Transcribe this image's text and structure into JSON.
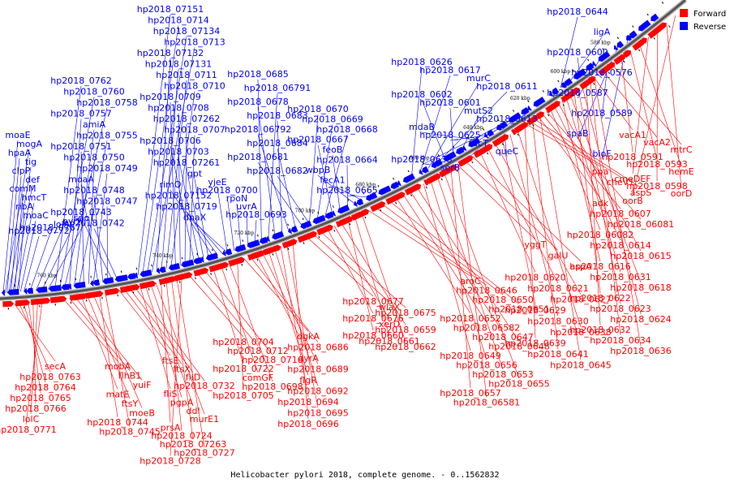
{
  "caption": "Helicobacter pylori 2018, complete genome. - 0..1562832",
  "colors": {
    "forward": "#ff0000",
    "reverse": "#0000ff",
    "backbone": "#555555"
  },
  "legend": [
    {
      "label": "Forward",
      "strand": "forward"
    },
    {
      "label": "Reverse",
      "strand": "reverse"
    }
  ],
  "ticks": [
    "760 kbp",
    "740 kbp",
    "720 kbp",
    "700 kbp",
    "680 kbp",
    "660 kbp",
    "640 kbp",
    "620 kbp",
    "600 kbp",
    "580 kbp"
  ],
  "reverse_labels": [
    "moaE",
    "mogA",
    "hpaA",
    "tig",
    "clpP",
    "def",
    "comM",
    "hmcT",
    "ribA",
    "moaC",
    "hp2018_0772",
    "hp2018_0767",
    "lolA",
    "pyrH",
    "spoT",
    "hp2018_0762",
    "hp2018_0760",
    "hp2018_0758",
    "hp2018_0757",
    "amiA",
    "hp2018_0755",
    "hp2018_0751",
    "hp2018_0750",
    "hp2018_0749",
    "moaA",
    "hp2018_0748",
    "hp2018_0747",
    "hp2018_0743",
    "hp2018_0742",
    "hp2018_07151",
    "hp2018_0714",
    "hp2018_07134",
    "hp2018_0713",
    "hp2018_07132",
    "hp2018_07131",
    "hp2018_0711",
    "hp2018_0710",
    "hp2018_0709",
    "hp2018_0708",
    "hp2018_07262",
    "hp2018_0707",
    "hp2018_0706",
    "hp2018_0703",
    "hp2018_07261",
    "gpt",
    "rimO",
    "hp2018_07152",
    "hp2018_0719",
    "dnaX",
    "yjeE",
    "hp2018_0700",
    "rpoN",
    "uvrA",
    "hp2018_0693",
    "hp2018_0685",
    "hp2018_06791",
    "hp2018_0678",
    "hp2018_0683",
    "hp2018_06792",
    "hp2018_0684",
    "hp2018_0681",
    "hp2018_0682",
    "hp2018_0670",
    "hp2018_0669",
    "hp2018_0668",
    "hp2018_0667",
    "feoB",
    "hp2018_0664",
    "wbpB",
    "fecA1",
    "hp2018_0665",
    "hp2018_0626",
    "hp2018_0617",
    "murC",
    "hp2018_0611",
    "hp2018_0602",
    "hp2018_0601",
    "mutS2",
    "hp2018_0613",
    "mdaB",
    "hp2018_0625",
    "fucT",
    "queC",
    "hp2018_0633",
    "serB",
    "hp2018_0644",
    "ligA",
    "hp2018_0600",
    "hp2018_0576",
    "hp2018_0587",
    "hp2018_0589",
    "spaB",
    "bioF"
  ],
  "forward_labels": [
    "secA",
    "hp2018_0763",
    "hp2018_0764",
    "hp2018_0765",
    "hp2018_0766",
    "lolC",
    "hp2018_0771",
    "mobA",
    "flhB1",
    "yuiF",
    "matE",
    "ftsY",
    "moeB",
    "hp2018_0744",
    "hp2018_0745",
    "ftsE",
    "ftsX",
    "fliD",
    "hp2018_0732",
    "fliS",
    "pgpA",
    "ddl",
    "murE1",
    "prsA",
    "hp2018_0724",
    "hp2018_07263",
    "hp2018_0727",
    "hp2018_0728",
    "hp2018_0704",
    "hp2018_0712",
    "hp2018_0716",
    "hp2018_0722",
    "comGF",
    "hp2018_0698",
    "hp2018_0705",
    "dgkA",
    "hp2018_0686",
    "gyrA",
    "hp2018_0689",
    "flgR",
    "hp2018_0692",
    "hp2018_0694",
    "hp2018_0695",
    "hp2018_0696",
    "hp2018_0677",
    "wlaX",
    "hp2018_0675",
    "hp2018_0676",
    "xerD",
    "hp2018_0659",
    "hp2018_0660",
    "hp2018_0661",
    "hp2018_0662",
    "aroC",
    "hp2018_0646",
    "hp2018_0650",
    "hp2018_0651",
    "hp2018_0652",
    "hp2018_06582",
    "hp2018_0647",
    "hp2018_0648",
    "hp2018_0649",
    "hp2018_0656",
    "hp2018_0653",
    "hp2018_0655",
    "hp2018_0657",
    "hp2018_06581",
    "yggT",
    "galU",
    "aspA",
    "hp2018_0620",
    "hp2018_0621",
    "hp2018_0627",
    "hp2018_0629",
    "hp2018_0630",
    "hp2018_0638",
    "hp2018_0639",
    "hp2018_0641",
    "hp2018_0645",
    "ppa",
    "cheV1",
    "aspS",
    "adk",
    "hp2018_0607",
    "hp2018_06081",
    "hp2018_06082",
    "hp2018_0614",
    "hp2018_0615",
    "hp2018_0616",
    "hp2018_0631",
    "hp2018_0618",
    "hp2018_0622",
    "hp2018_0623",
    "hp2018_0624",
    "hp2018_0632",
    "hp2018_0634",
    "hp2018_0636",
    "vacA1",
    "vacA2",
    "mtrC",
    "hp2018_0591",
    "hp2018_0593",
    "hemE",
    "cmeDEF",
    "hp2018_0598",
    "oorD",
    "oorB"
  ]
}
